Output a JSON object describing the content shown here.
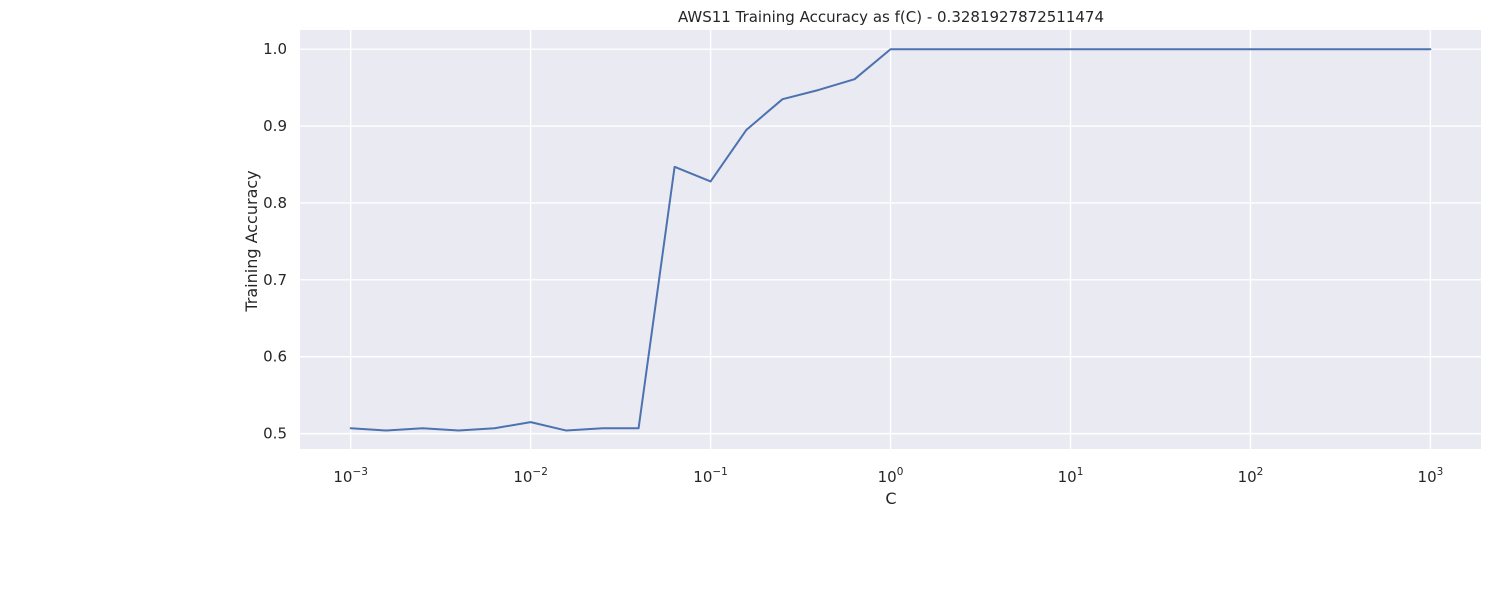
{
  "chart_data": {
    "type": "line",
    "title": "AWS11 Training Accuracy as f(C) - 0.3281927872511474",
    "xlabel": "C",
    "ylabel": "Training Accuracy",
    "xscale": "log",
    "xlim": [
      0.000523,
      1910
    ],
    "ylim": [
      0.48,
      1.025
    ],
    "grid": true,
    "background": "#EAEAF2",
    "grid_color": "#FFFFFF",
    "x_ticks": [
      {
        "base": "10",
        "exp": "−3",
        "value": 0.001
      },
      {
        "base": "10",
        "exp": "−2",
        "value": 0.01
      },
      {
        "base": "10",
        "exp": "−1",
        "value": 0.1
      },
      {
        "base": "10",
        "exp": "0",
        "value": 1
      },
      {
        "base": "10",
        "exp": "1",
        "value": 10
      },
      {
        "base": "10",
        "exp": "2",
        "value": 100
      },
      {
        "base": "10",
        "exp": "3",
        "value": 1000
      }
    ],
    "y_ticks": [
      {
        "label": "0.5",
        "value": 0.5
      },
      {
        "label": "0.6",
        "value": 0.6
      },
      {
        "label": "0.7",
        "value": 0.7
      },
      {
        "label": "0.8",
        "value": 0.8
      },
      {
        "label": "0.9",
        "value": 0.9
      },
      {
        "label": "1.0",
        "value": 1.0
      }
    ],
    "series": [
      {
        "color": "#4C72B0",
        "x": [
          0.001,
          0.00158,
          0.00251,
          0.00398,
          0.00631,
          0.01,
          0.0158,
          0.0251,
          0.0398,
          0.0631,
          0.1,
          0.158,
          0.251,
          0.398,
          0.631,
          1,
          1000
        ],
        "y": [
          0.507,
          0.504,
          0.507,
          0.504,
          0.507,
          0.515,
          0.504,
          0.507,
          0.507,
          0.847,
          0.828,
          0.895,
          0.935,
          0.947,
          0.961,
          1.0,
          1.0
        ]
      }
    ]
  }
}
